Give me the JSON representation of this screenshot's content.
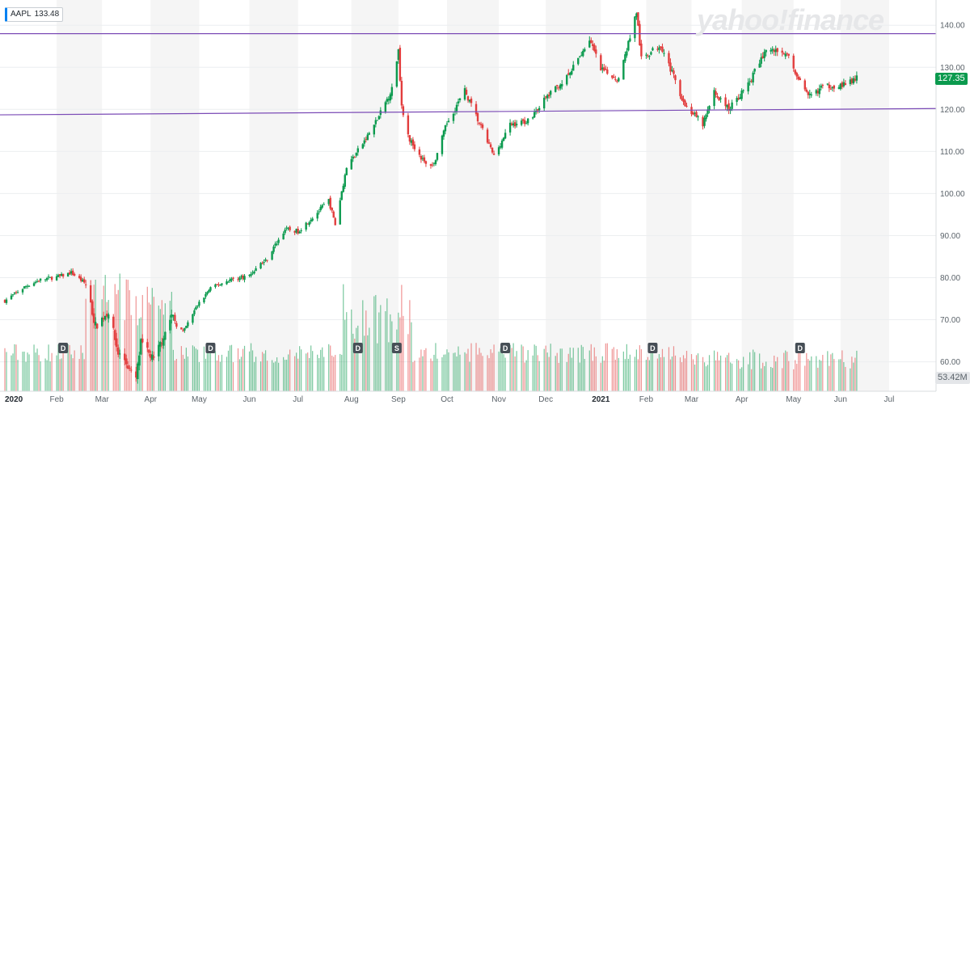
{
  "ticker": {
    "symbol": "AAPL",
    "price": "133.48"
  },
  "watermark": "yahoo!finance",
  "last_price_label": "127.35",
  "volume_label": "53.42M",
  "colors": {
    "up": "#0b9a4e",
    "down": "#e23d3d",
    "trendline": "#7b4bb6",
    "band": "#f5f5f5"
  },
  "chart_data": {
    "type": "candlestick",
    "ylim": [
      53,
      146
    ],
    "y_ticks": [
      "140.00",
      "130.00",
      "120.00",
      "110.00",
      "100.00",
      "90.00",
      "80.00",
      "70.00",
      "60.00"
    ],
    "x_labels": [
      "2020",
      "Feb",
      "Mar",
      "Apr",
      "May",
      "Jun",
      "Jul",
      "Aug",
      "Sep",
      "Oct",
      "Nov",
      "Dec",
      "2021",
      "Feb",
      "Mar",
      "Apr",
      "May",
      "Jun",
      "Jul"
    ],
    "x_labels_bold": [
      "2020",
      "2021"
    ],
    "close_series": [
      [
        "2020-01-02",
        74.5
      ],
      [
        "2020-01-15",
        78.0
      ],
      [
        "2020-01-24",
        79.5
      ],
      [
        "2020-02-05",
        80.3
      ],
      [
        "2020-02-12",
        81.2
      ],
      [
        "2020-02-21",
        78.5
      ],
      [
        "2020-02-27",
        68.5
      ],
      [
        "2020-03-06",
        72.0
      ],
      [
        "2020-03-12",
        62.0
      ],
      [
        "2020-03-16",
        60.5
      ],
      [
        "2020-03-20",
        57.3
      ],
      [
        "2020-03-23",
        56.1
      ],
      [
        "2020-03-26",
        64.5
      ],
      [
        "2020-04-03",
        60.4
      ],
      [
        "2020-04-14",
        71.0
      ],
      [
        "2020-04-21",
        67.0
      ],
      [
        "2020-04-30",
        73.5
      ],
      [
        "2020-05-08",
        77.5
      ],
      [
        "2020-05-20",
        79.5
      ],
      [
        "2020-06-01",
        80.5
      ],
      [
        "2020-06-08",
        83.4
      ],
      [
        "2020-06-11",
        84.0
      ],
      [
        "2020-06-23",
        91.5
      ],
      [
        "2020-07-01",
        91.0
      ],
      [
        "2020-07-13",
        95.5
      ],
      [
        "2020-07-20",
        98.4
      ],
      [
        "2020-07-24",
        92.6
      ],
      [
        "2020-07-31",
        106.3
      ],
      [
        "2020-08-12",
        113.0
      ],
      [
        "2020-08-20",
        118.3
      ],
      [
        "2020-08-28",
        124.8
      ],
      [
        "2020-09-01",
        134.2
      ],
      [
        "2020-09-03",
        120.9
      ],
      [
        "2020-09-08",
        112.8
      ],
      [
        "2020-09-18",
        106.8
      ],
      [
        "2020-09-23",
        107.1
      ],
      [
        "2020-10-01",
        116.8
      ],
      [
        "2020-10-12",
        124.4
      ],
      [
        "2020-10-20",
        117.5
      ],
      [
        "2020-10-30",
        108.9
      ],
      [
        "2020-11-09",
        116.3
      ],
      [
        "2020-11-20",
        117.3
      ],
      [
        "2020-12-01",
        122.7
      ],
      [
        "2020-12-15",
        127.9
      ],
      [
        "2020-12-28",
        136.7
      ],
      [
        "2021-01-04",
        129.4
      ],
      [
        "2021-01-15",
        127.1
      ],
      [
        "2021-01-26",
        143.2
      ],
      [
        "2021-01-29",
        131.9
      ],
      [
        "2021-02-10",
        135.4
      ],
      [
        "2021-02-25",
        121.0
      ],
      [
        "2021-03-08",
        116.4
      ],
      [
        "2021-03-15",
        124.0
      ],
      [
        "2021-03-24",
        120.1
      ],
      [
        "2021-04-05",
        125.9
      ],
      [
        "2021-04-16",
        134.2
      ],
      [
        "2021-04-28",
        133.6
      ],
      [
        "2021-05-12",
        122.8
      ],
      [
        "2021-05-21",
        125.4
      ],
      [
        "2021-06-04",
        125.9
      ],
      [
        "2021-06-11",
        127.35
      ]
    ],
    "trendlines": [
      {
        "from": [
          "2020-01-02",
          138.0
        ],
        "to": [
          "2021-07-15",
          138.0
        ]
      },
      {
        "from": [
          "2020-01-02",
          118.7
        ],
        "to": [
          "2021-07-15",
          120.2
        ]
      }
    ],
    "events": [
      {
        "date": "2020-02-07",
        "label": "D"
      },
      {
        "date": "2020-05-08",
        "label": "D"
      },
      {
        "date": "2020-08-07",
        "label": "D"
      },
      {
        "date": "2020-08-31",
        "label": "S"
      },
      {
        "date": "2020-11-06",
        "label": "D"
      },
      {
        "date": "2021-02-05",
        "label": "D"
      },
      {
        "date": "2021-05-07",
        "label": "D"
      }
    ]
  }
}
